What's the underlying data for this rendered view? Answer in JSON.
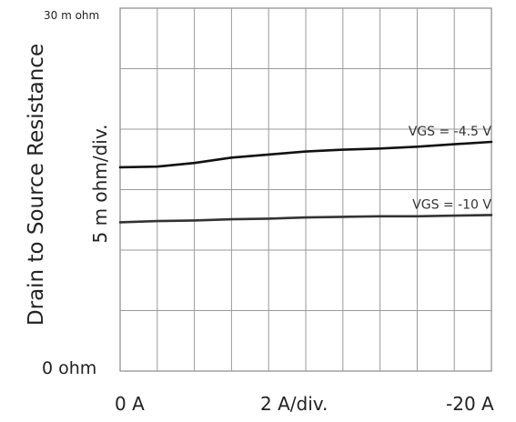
{
  "chart_data": {
    "type": "line",
    "ylabel": "Drain to Source Resistance",
    "ylabel_scale": "5 m ohm/div.",
    "y_tick_top": "30 m ohm",
    "y_tick_bottom": "0  ohm",
    "x_tick_left": "0  A",
    "x_tick_mid": "2  A/div.",
    "x_tick_right": "-20  A",
    "xlim": [
      0,
      -20
    ],
    "ylim": [
      0,
      30
    ],
    "x_divisions": 10,
    "y_divisions": 6,
    "grid": true,
    "series": [
      {
        "name": "VGS = -4.5 V",
        "color": "#111111",
        "x": [
          0,
          -2,
          -4,
          -6,
          -8,
          -10,
          -12,
          -14,
          -16,
          -18,
          -20
        ],
        "y": [
          16.85,
          16.9,
          17.2,
          17.65,
          17.9,
          18.15,
          18.3,
          18.4,
          18.55,
          18.75,
          18.95
        ]
      },
      {
        "name": "VGS = -10 V",
        "color": "#333333",
        "x": [
          0,
          -2,
          -4,
          -6,
          -8,
          -10,
          -12,
          -14,
          -16,
          -18,
          -20
        ],
        "y": [
          12.3,
          12.4,
          12.45,
          12.55,
          12.6,
          12.7,
          12.75,
          12.8,
          12.8,
          12.85,
          12.9
        ]
      }
    ]
  }
}
